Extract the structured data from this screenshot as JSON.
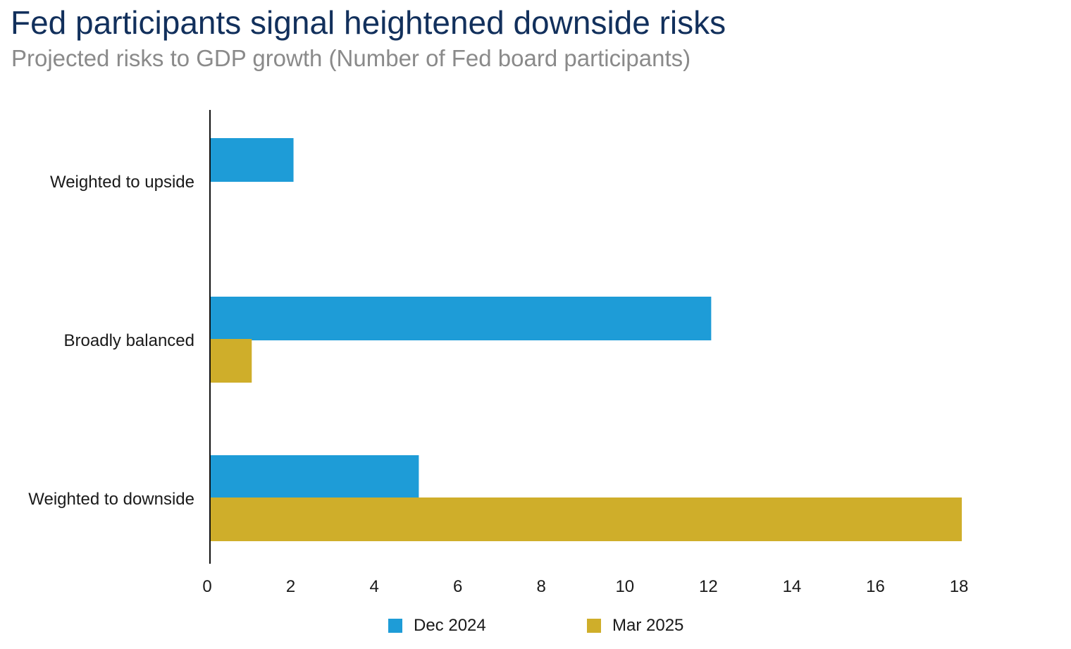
{
  "title": "Fed participants signal heightened downside risks",
  "subtitle": "Projected risks to GDP growth (Number of Fed board participants)",
  "chart_data": {
    "type": "bar",
    "orientation": "horizontal",
    "categories": [
      "Weighted to upside",
      "Broadly balanced",
      "Weighted to downside"
    ],
    "series": [
      {
        "name": "Dec 2024",
        "color": "#1e9cd7",
        "values": [
          2,
          12,
          5
        ]
      },
      {
        "name": "Mar 2025",
        "color": "#cfae2a",
        "values": [
          0,
          1,
          18
        ]
      }
    ],
    "x_ticks": [
      "0",
      "2",
      "4",
      "6",
      "8",
      "10",
      "12",
      "14",
      "16",
      "18"
    ],
    "xlim": [
      0,
      20
    ],
    "grid": false,
    "legend_position": "bottom"
  }
}
